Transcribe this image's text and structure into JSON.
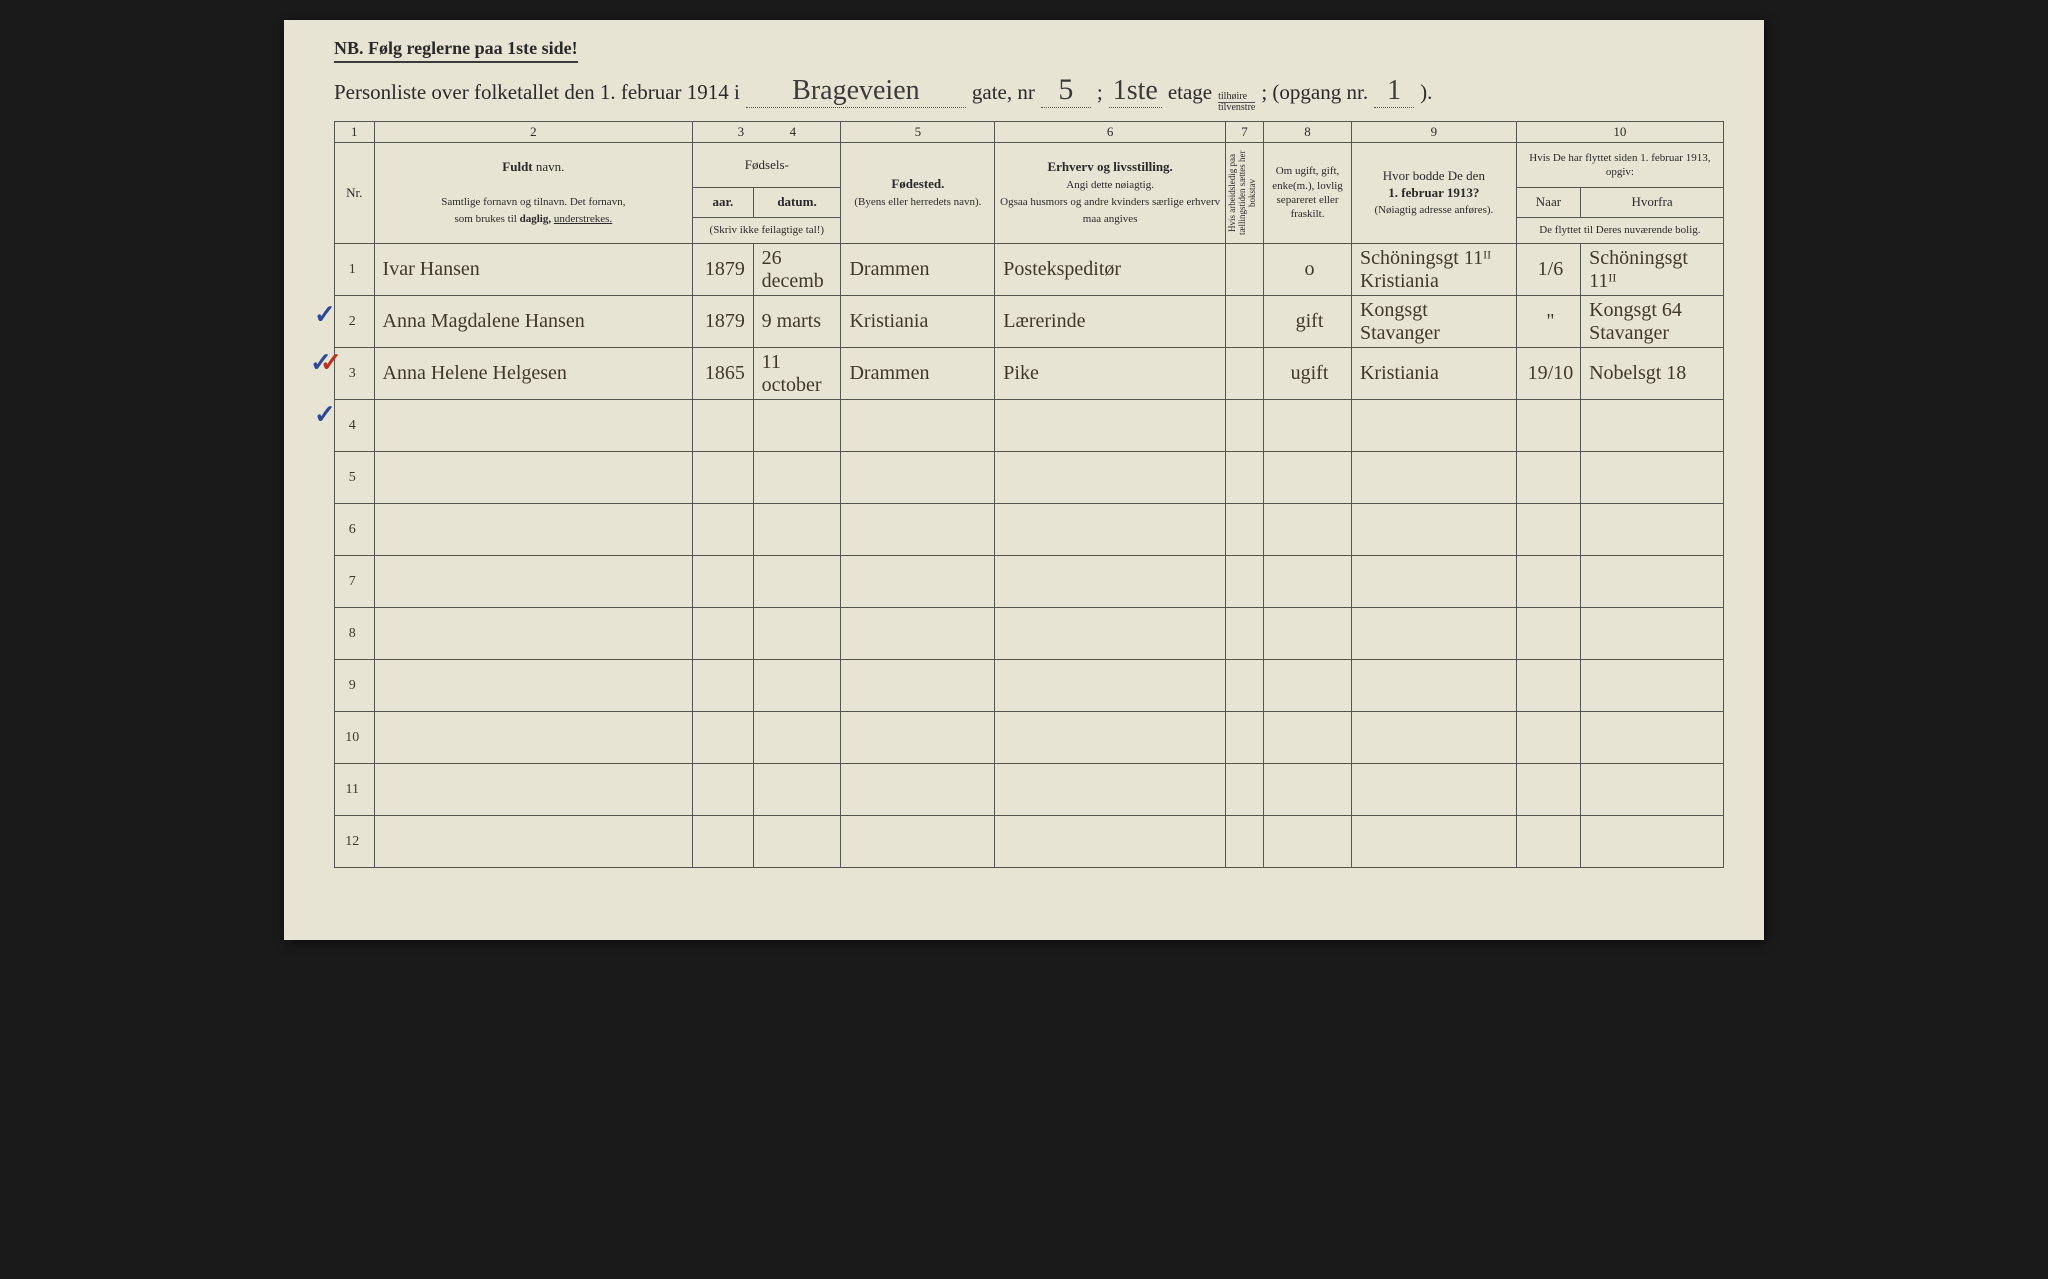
{
  "page": {
    "background": "#e8e4d4",
    "ink": "#2a2a2a",
    "hand_ink": "#403828",
    "blue": "#2a4a9a",
    "red": "#c03020"
  },
  "nb": "NB.   Følg reglerne paa 1ste side!",
  "title": {
    "prefix": "Personliste over folketallet den 1. februar 1914 i",
    "street": "Brageveien",
    "gate_label": "gate, nr",
    "nr": "5",
    "semi": ";",
    "floor": "1ste",
    "etage": "etage",
    "side_top": "tilhøire",
    "side_bot": "tilvenstre",
    "opgang": "; (opgang nr.",
    "opgang_nr": "1",
    "close": ")."
  },
  "colnums": [
    "1",
    "2",
    "3",
    "4",
    "5",
    "6",
    "7",
    "8",
    "9",
    "10"
  ],
  "headers": {
    "nr": "Nr.",
    "name_title": "Fuldt",
    "name_sub": "navn.",
    "name_desc1": "Samtlige fornavn og tilnavn.  Det fornavn,",
    "name_desc2": "som brukes til",
    "name_desc3": "daglig,",
    "name_desc4": "understrekes.",
    "birth": "Fødsels-",
    "year": "aar.",
    "date": "datum.",
    "year_note": "(Skriv ikke feilagtige tal!)",
    "birthplace": "Fødested.",
    "birthplace_note": "(Byens eller herredets navn).",
    "occupation": "Erhverv og livsstilling.",
    "occ_note1": "Angi dette nøiagtig.",
    "occ_note2": "Ogsaa husmors og andre kvinders særlige erhverv maa angives",
    "col7": "Hvis arbeidsledig paa tællingstiden sættes her bokstav",
    "col8_t": "Om ugift, gift, enke(m.), lovlig separeret eller fraskilt.",
    "col9_t": "Hvor bodde De den",
    "col9_b": "1. februar 1913?",
    "col9_n": "(Nøiagtig adresse anføres).",
    "col10_t": "Hvis De har flyttet siden 1. februar 1913, opgiv:",
    "col10_naar": "Naar",
    "col10_hvor": "Hvorfra",
    "col10_n": "De flyttet til Deres nuværende bolig."
  },
  "rows": [
    {
      "n": "1",
      "name": "Ivar   Hansen",
      "year": "1879",
      "date": "26 decemb",
      "place": "Drammen",
      "occ": "Postekspeditør",
      "c7": "",
      "c8": "o",
      "c9": "Schöningsgt 11ᴵᴵ Kristiania",
      "naar": "1/6",
      "hvor": "Schöningsgt 11ᴵᴵ"
    },
    {
      "n": "2",
      "name": "Anna  Magdalene  Hansen",
      "year": "1879",
      "date": "9 marts",
      "place": "Kristiania",
      "occ": "Lærerinde",
      "c7": "",
      "c8": "gift",
      "c9": "Kongsgt Stavanger",
      "naar": "\"",
      "hvor": "Kongsgt 64 Stavanger"
    },
    {
      "n": "3",
      "name": "Anna  Helene  Helgesen",
      "year": "1865",
      "date": "11 october",
      "place": "Drammen",
      "occ": "Pike",
      "c7": "",
      "c8": "ugift",
      "c9": "Kristiania",
      "naar": "19/10",
      "hvor": "Nobelsgt 18"
    },
    {
      "n": "4"
    },
    {
      "n": "5"
    },
    {
      "n": "6"
    },
    {
      "n": "7"
    },
    {
      "n": "8"
    },
    {
      "n": "9"
    },
    {
      "n": "10"
    },
    {
      "n": "11"
    },
    {
      "n": "12"
    }
  ]
}
